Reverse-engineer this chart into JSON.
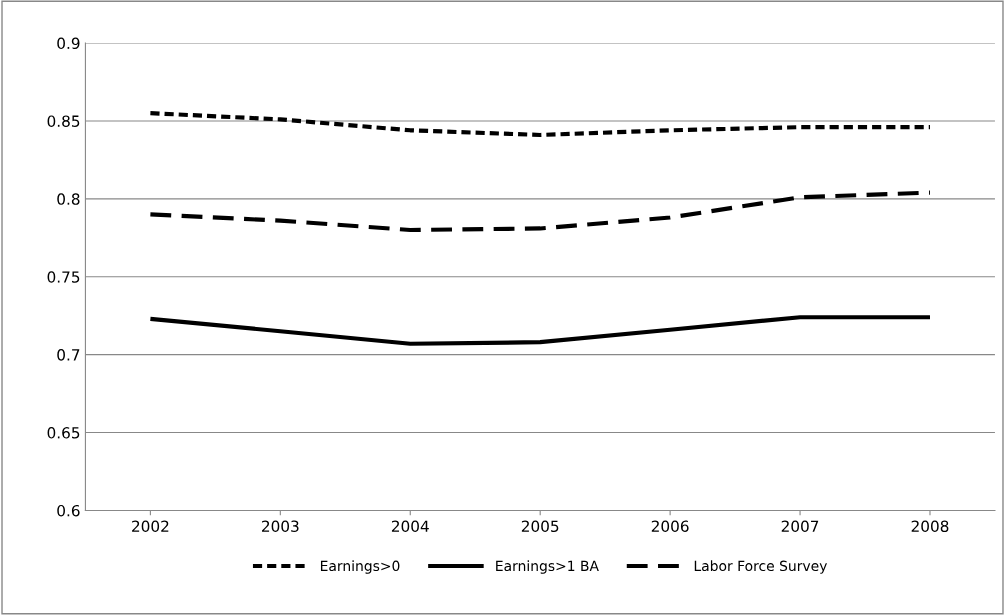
{
  "chart_data": {
    "type": "line",
    "categories": [
      "2002",
      "2003",
      "2004",
      "2005",
      "2006",
      "2007",
      "2008"
    ],
    "series": [
      {
        "name": "Earnings>0",
        "color": "#000000",
        "line_style": "dotted",
        "values": [
          0.855,
          0.851,
          0.844,
          0.841,
          0.844,
          0.846,
          0.846
        ]
      },
      {
        "name": "Earnings>1 BA",
        "color": "#000000",
        "line_style": "solid",
        "values": [
          0.723,
          0.715,
          0.707,
          0.708,
          0.716,
          0.724,
          0.724
        ]
      },
      {
        "name": "Labor Force Survey",
        "color": "#000000",
        "line_style": "dashed",
        "values": [
          0.79,
          0.786,
          0.78,
          0.781,
          0.788,
          0.801,
          0.804
        ]
      }
    ],
    "ylim": [
      0.6,
      0.9
    ],
    "yticks": [
      0.6,
      0.65,
      0.7,
      0.75,
      0.8,
      0.85,
      0.9
    ],
    "grid": "y",
    "legend": "bottom",
    "marker": "none"
  }
}
